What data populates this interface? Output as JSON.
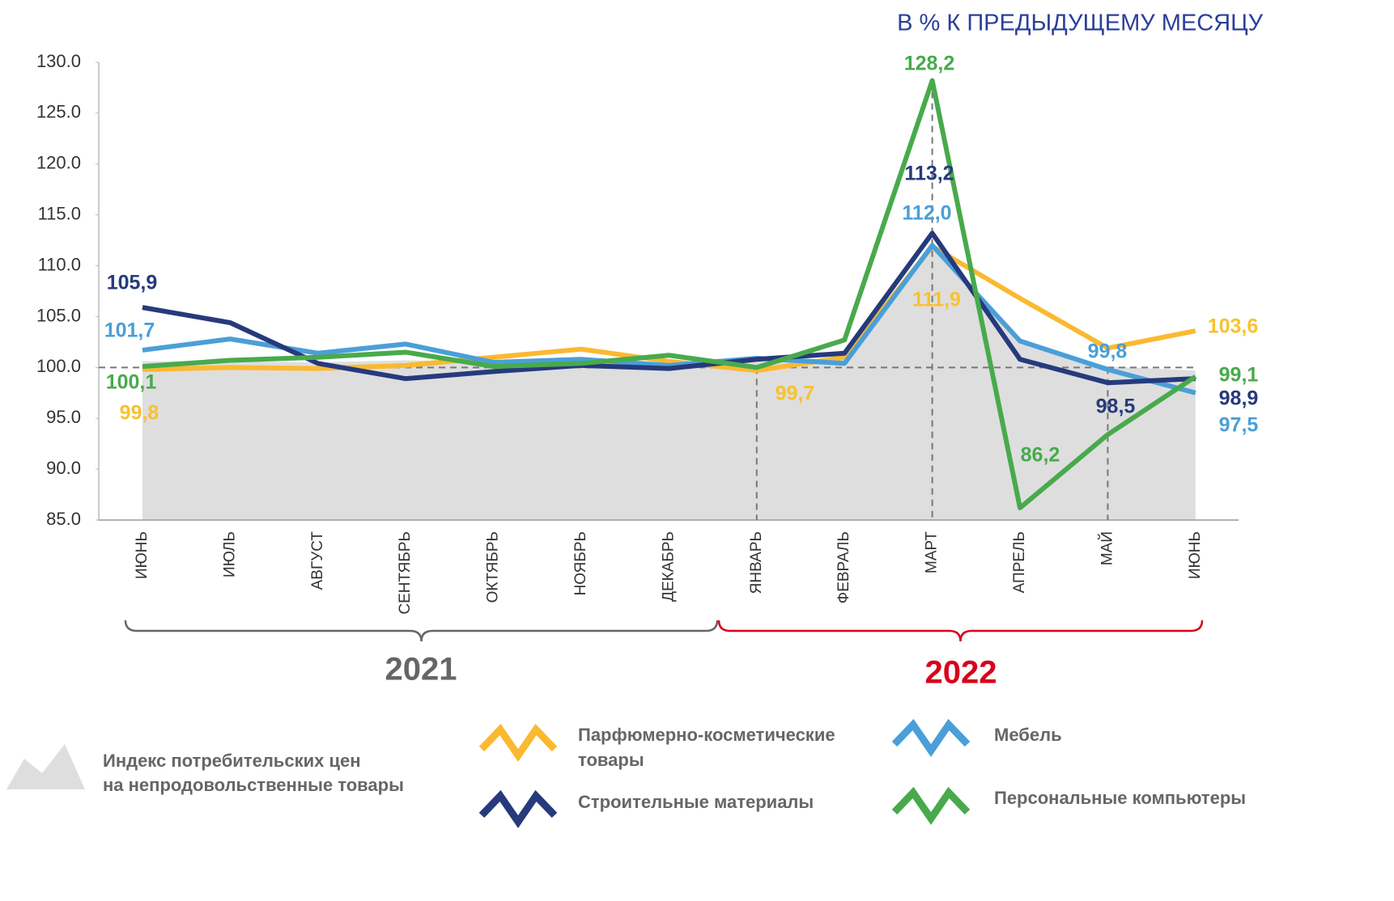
{
  "chart_data": {
    "type": "line",
    "title": "В % К ПРЕДЫДУЩЕМУ МЕСЯЦУ",
    "categories": [
      "ИЮНЬ",
      "ИЮЛЬ",
      "АВГУСТ",
      "СЕНТЯБРЬ",
      "ОКТЯБРЬ",
      "НОЯБРЬ",
      "ДЕКАБРЬ",
      "ЯНВАРЬ",
      "ФЕВРАЛЬ",
      "МАРТ",
      "АПРЕЛЬ",
      "МАЙ",
      "ИЮНЬ"
    ],
    "year_labels": [
      "2021",
      "2022"
    ],
    "ylim": [
      85,
      130
    ],
    "yticks": [
      {
        "value": 85,
        "label": "85.0"
      },
      {
        "value": 90,
        "label": "90.0"
      },
      {
        "value": 95,
        "label": "95.0"
      },
      {
        "value": 100,
        "label": "100.0"
      },
      {
        "value": 105,
        "label": "105.0"
      },
      {
        "value": 110,
        "label": "110.0"
      },
      {
        "value": 115,
        "label": "115.0"
      },
      {
        "value": 120,
        "label": "120.0"
      },
      {
        "value": 125,
        "label": "125.0"
      },
      {
        "value": 130,
        "label": "130.0"
      }
    ],
    "reference_line": 100,
    "area": {
      "name": "Индекс потребительских цен на непродовольственные товары",
      "color": "#dedede",
      "values": [
        100.6,
        100.6,
        100.5,
        100.7,
        100.6,
        100.4,
        100.4,
        100.7,
        100.9,
        111.7,
        102.4,
        100.1,
        99.7
      ]
    },
    "series": [
      {
        "name": "Парфюмерно-косметические товары",
        "color": "#fbb931",
        "label_color": "#f9c12e",
        "values": [
          99.8,
          100.0,
          99.9,
          100.2,
          101.0,
          101.8,
          100.6,
          99.7,
          101.0,
          111.9,
          106.8,
          101.9,
          103.6
        ],
        "value_labels": [
          "99,8",
          null,
          null,
          null,
          null,
          null,
          null,
          "99,7",
          null,
          "111,9",
          null,
          null,
          "103,6"
        ]
      },
      {
        "name": "Мебель",
        "color": "#4a9fd8",
        "label_color": "#4a9fd8",
        "values": [
          101.7,
          102.8,
          101.4,
          102.3,
          100.5,
          100.8,
          100.2,
          100.9,
          100.4,
          112.0,
          102.6,
          99.8,
          97.5
        ],
        "value_labels": [
          "101,7",
          null,
          null,
          null,
          null,
          null,
          null,
          null,
          null,
          "112,0",
          null,
          "99,8",
          "97,5"
        ]
      },
      {
        "name": "Строительные материалы",
        "color": "#263a7c",
        "label_color": "#263a7c",
        "values": [
          105.9,
          104.4,
          100.4,
          98.9,
          99.6,
          100.2,
          99.9,
          100.8,
          101.4,
          113.2,
          100.8,
          98.5,
          98.9
        ],
        "value_labels": [
          "105,9",
          null,
          null,
          null,
          null,
          null,
          null,
          null,
          null,
          "113,2",
          null,
          "98,5",
          "98,9"
        ]
      },
      {
        "name": "Персональные компьютеры",
        "color": "#48aa4c",
        "label_color": "#48aa4c",
        "values": [
          100.1,
          100.7,
          101.0,
          101.5,
          100.1,
          100.4,
          101.2,
          100.0,
          102.7,
          128.2,
          86.2,
          93.4,
          99.1
        ],
        "value_labels": [
          "100,1",
          null,
          null,
          null,
          null,
          null,
          null,
          null,
          null,
          "128,2",
          "86,2",
          null,
          "99,1"
        ]
      }
    ]
  }
}
